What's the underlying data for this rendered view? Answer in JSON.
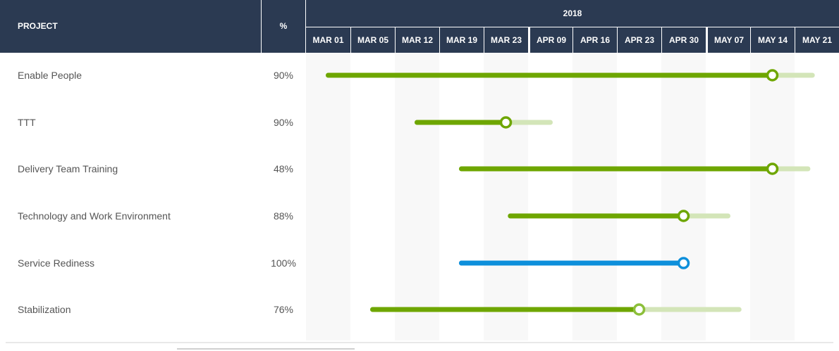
{
  "header": {
    "project_label": "PROJECT",
    "percent_label": "%",
    "year": "2018"
  },
  "weeks": [
    "MAR 01",
    "MAR 05",
    "MAR 12",
    "MAR 19",
    "MAR 23",
    "APR 09",
    "APR 16",
    "APR 23",
    "APR 30",
    "MAY 07",
    "MAY 14",
    "MAY 21"
  ],
  "colors": {
    "header_bg": "#2b3a52",
    "progress_green": "#6ea600",
    "remaining_green": "#d3e5b8",
    "complete_blue": "#0d8fdb",
    "text": "#555555"
  },
  "chart_data": {
    "type": "gantt",
    "year": "2018",
    "columns": [
      "MAR 01",
      "MAR 05",
      "MAR 12",
      "MAR 19",
      "MAR 23",
      "APR 09",
      "APR 16",
      "APR 23",
      "APR 30",
      "MAY 07",
      "MAY 14",
      "MAY 21"
    ],
    "tasks": [
      {
        "name": "Enable People",
        "percent_label": "90%",
        "percent": 90,
        "start_col": 0.5,
        "end_col": 11.4,
        "status": "in-progress"
      },
      {
        "name": "TTT",
        "percent_label": "90%",
        "percent": 90,
        "start_col": 2.5,
        "end_col": 5.5,
        "status": "in-progress"
      },
      {
        "name": "Delivery Team Training",
        "percent_label": "48%",
        "percent": 48,
        "start_col": 3.5,
        "end_col": 11.3,
        "status": "in-progress"
      },
      {
        "name": "Technology and Work Environment",
        "percent_label": "88%",
        "percent": 88,
        "start_col": 4.6,
        "end_col": 9.5,
        "status": "in-progress"
      },
      {
        "name": "Service Rediness",
        "percent_label": "100%",
        "percent": 100,
        "start_col": 3.5,
        "end_col": 8.5,
        "status": "complete"
      },
      {
        "name": "Stabilization",
        "percent_label": "76%",
        "percent": 76,
        "start_col": 1.5,
        "end_col": 9.75,
        "status": "in-progress"
      }
    ],
    "progress_markers_col": [
      10.5,
      4.5,
      10.5,
      8.5,
      8.5,
      7.5
    ]
  }
}
